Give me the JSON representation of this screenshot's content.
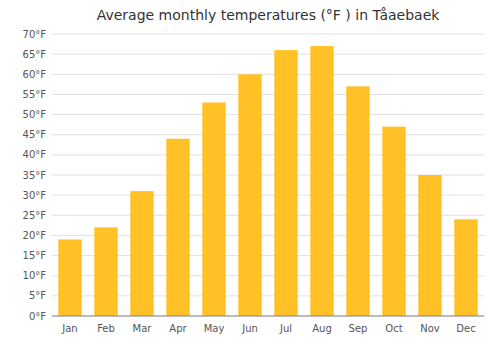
{
  "chart_data": {
    "type": "bar",
    "title": "Average monthly temperatures (°F ) in Tå​aebaek",
    "categories": [
      "Jan",
      "Feb",
      "Mar",
      "Apr",
      "May",
      "Jun",
      "Jul",
      "Aug",
      "Sep",
      "Oct",
      "Nov",
      "Dec"
    ],
    "values": [
      19,
      22,
      31,
      44,
      53,
      60,
      66,
      67,
      57,
      47,
      35,
      24
    ],
    "color": "#FFC125",
    "ylim": [
      0,
      70
    ],
    "yticks": [
      {
        "value": 0,
        "label": "0°F"
      },
      {
        "value": 5,
        "label": "5°F"
      },
      {
        "value": 10,
        "label": "10°F"
      },
      {
        "value": 15,
        "label": "15°F"
      },
      {
        "value": 20,
        "label": "20°F"
      },
      {
        "value": 25,
        "label": "25°F"
      },
      {
        "value": 30,
        "label": "30°F"
      },
      {
        "value": 35,
        "label": "35°F"
      },
      {
        "value": 40,
        "label": "40°F"
      },
      {
        "value": 45,
        "label": "45°F"
      },
      {
        "value": 50,
        "label": "50°F"
      },
      {
        "value": 55,
        "label": "55°F"
      },
      {
        "value": 60,
        "label": "60°F"
      },
      {
        "value": 65,
        "label": "65°F"
      },
      {
        "value": 70,
        "label": "70°F"
      }
    ],
    "grid": true
  }
}
